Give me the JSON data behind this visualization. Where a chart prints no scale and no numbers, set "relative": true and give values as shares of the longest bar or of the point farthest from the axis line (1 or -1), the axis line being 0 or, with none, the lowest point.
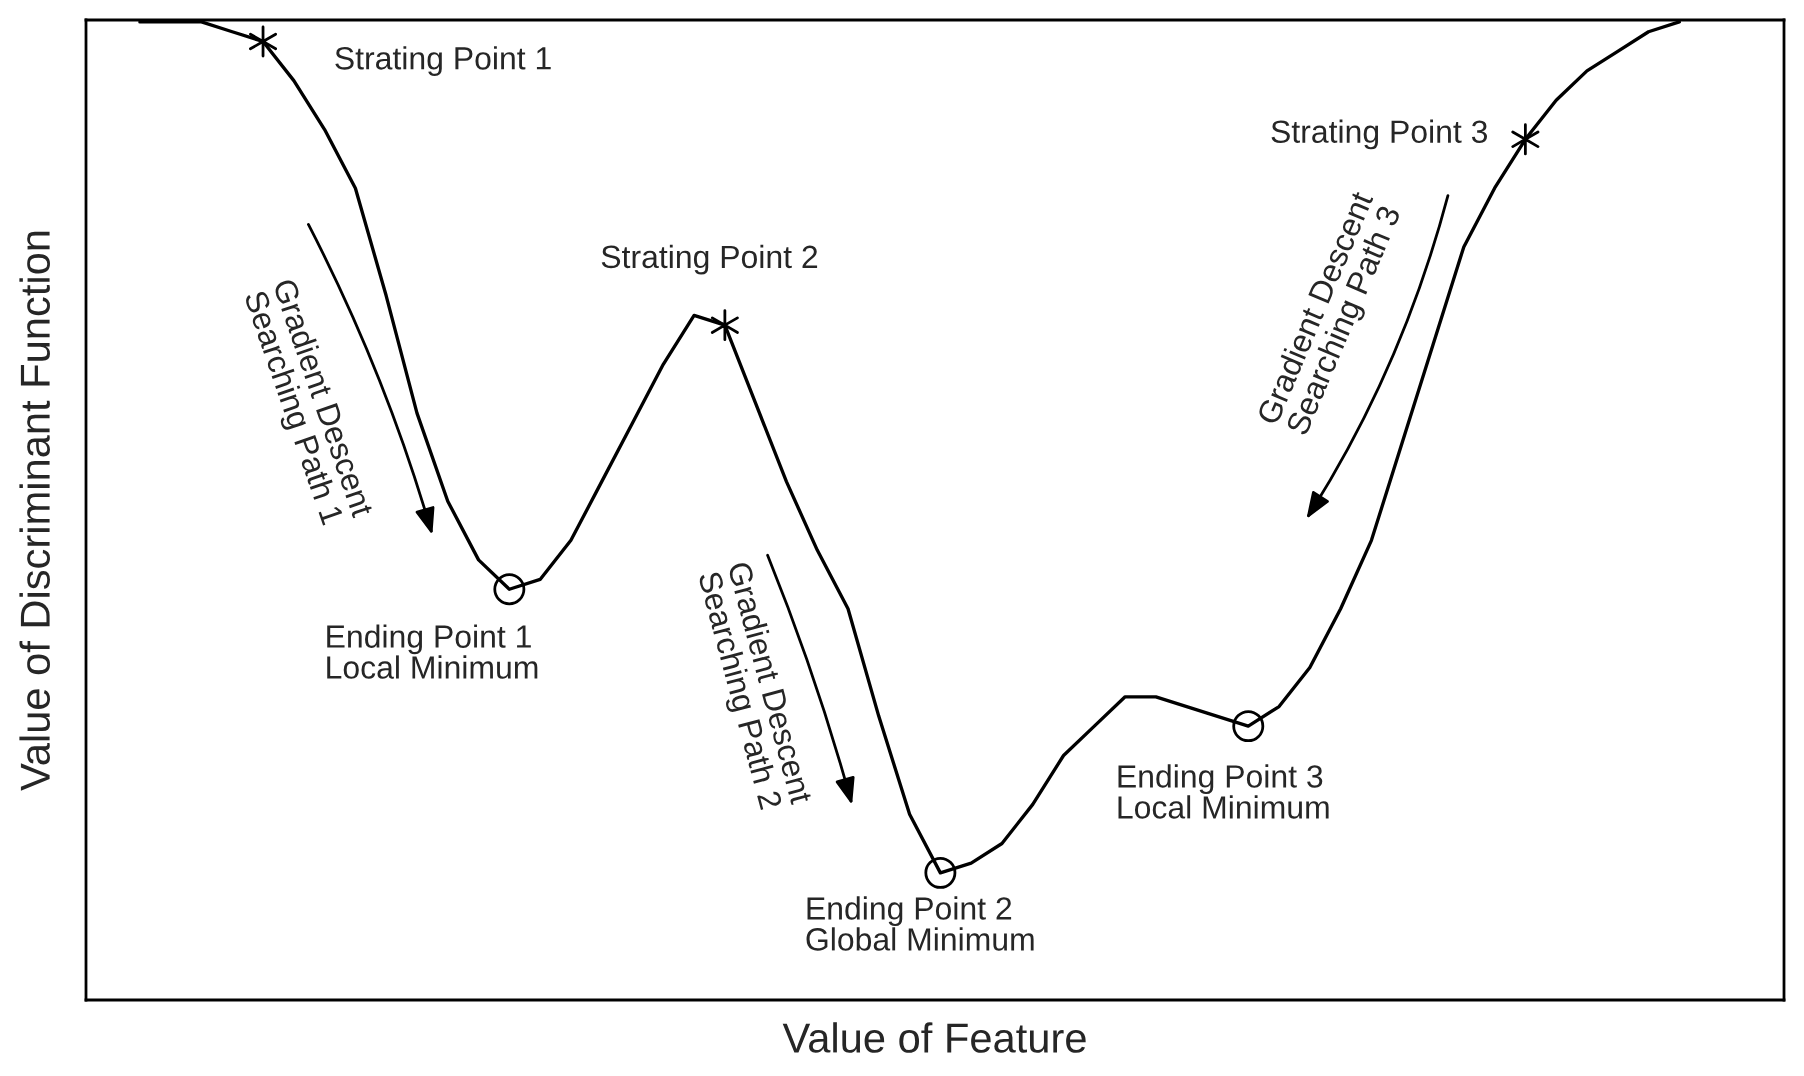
{
  "chart_data": {
    "type": "line",
    "relative": true,
    "xlabel": "Value of Feature",
    "ylabel": "Value of Discriminant Function",
    "tick_labels": false,
    "line_style": "solid",
    "categories": [
      null,
      null,
      null,
      null,
      null,
      null,
      null,
      null,
      null,
      null,
      null,
      null,
      null,
      null,
      null,
      null,
      null,
      null,
      null,
      null,
      null,
      null,
      null,
      null,
      null,
      null,
      null,
      null,
      null,
      null,
      null,
      null,
      null,
      null,
      null,
      null,
      null,
      null,
      null,
      null,
      null,
      null,
      null,
      null,
      null,
      null,
      null,
      null,
      null,
      null,
      null
    ],
    "series": [
      {
        "color": "#000000",
        "values": [
          1.0,
          1.0,
          1.0,
          0.99,
          0.98,
          0.94,
          0.89,
          0.83,
          0.72,
          0.6,
          0.51,
          0.45,
          0.42,
          0.43,
          0.47,
          0.53,
          0.59,
          0.65,
          0.7,
          0.69,
          0.61,
          0.53,
          0.46,
          0.4,
          0.29,
          0.19,
          0.13,
          0.14,
          0.16,
          0.2,
          0.25,
          0.28,
          0.31,
          0.31,
          0.3,
          0.29,
          0.28,
          0.3,
          0.34,
          0.4,
          0.47,
          0.57,
          0.67,
          0.77,
          0.83,
          0.88,
          0.92,
          0.95,
          0.97,
          0.99,
          1.0
        ]
      }
    ],
    "annotations": [
      "Strating Point 1",
      "Strating Point 2",
      "Strating Point 3",
      "Ending Point 1\nLocal Minimum",
      "Ending Point 2\nGlobal Minimum",
      "Ending Point 3\nLocal Minimum",
      "Gradient Descent\nSearching Path 1",
      "Gradient Descent\nSearching Path 2",
      "Gradient Descent\nSearching Path 3"
    ]
  }
}
